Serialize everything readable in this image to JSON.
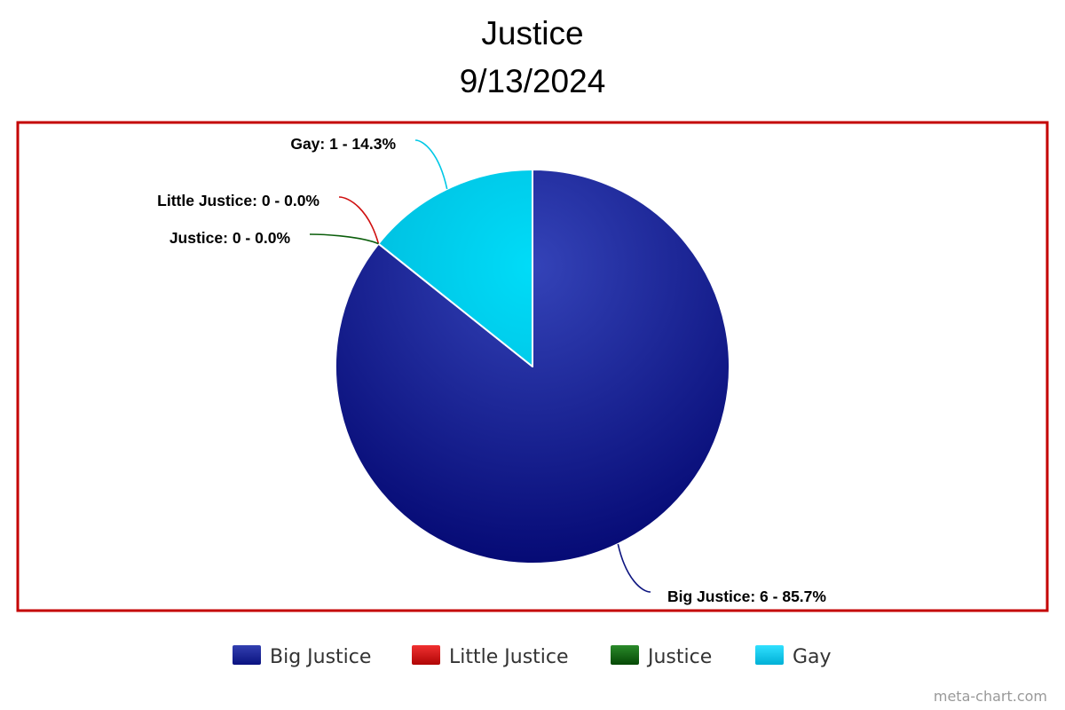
{
  "chart_data": {
    "type": "pie",
    "title": "Justice",
    "subtitle": "9/13/2024",
    "categories": [
      "Big Justice",
      "Little Justice",
      "Justice",
      "Gay"
    ],
    "values": [
      6,
      0,
      0,
      1
    ],
    "data_labels": [
      "Big Justice: 6 - 85.7%",
      "Little Justice: 0 - 0.0%",
      "Justice: 0 - 0.0%",
      "Gay: 1 - 14.3%"
    ],
    "colors": [
      "#0d1580",
      "#d01010",
      "#0b5e0b",
      "#00c8e6"
    ],
    "legend_position": "bottom"
  },
  "credit": "meta-chart.com"
}
